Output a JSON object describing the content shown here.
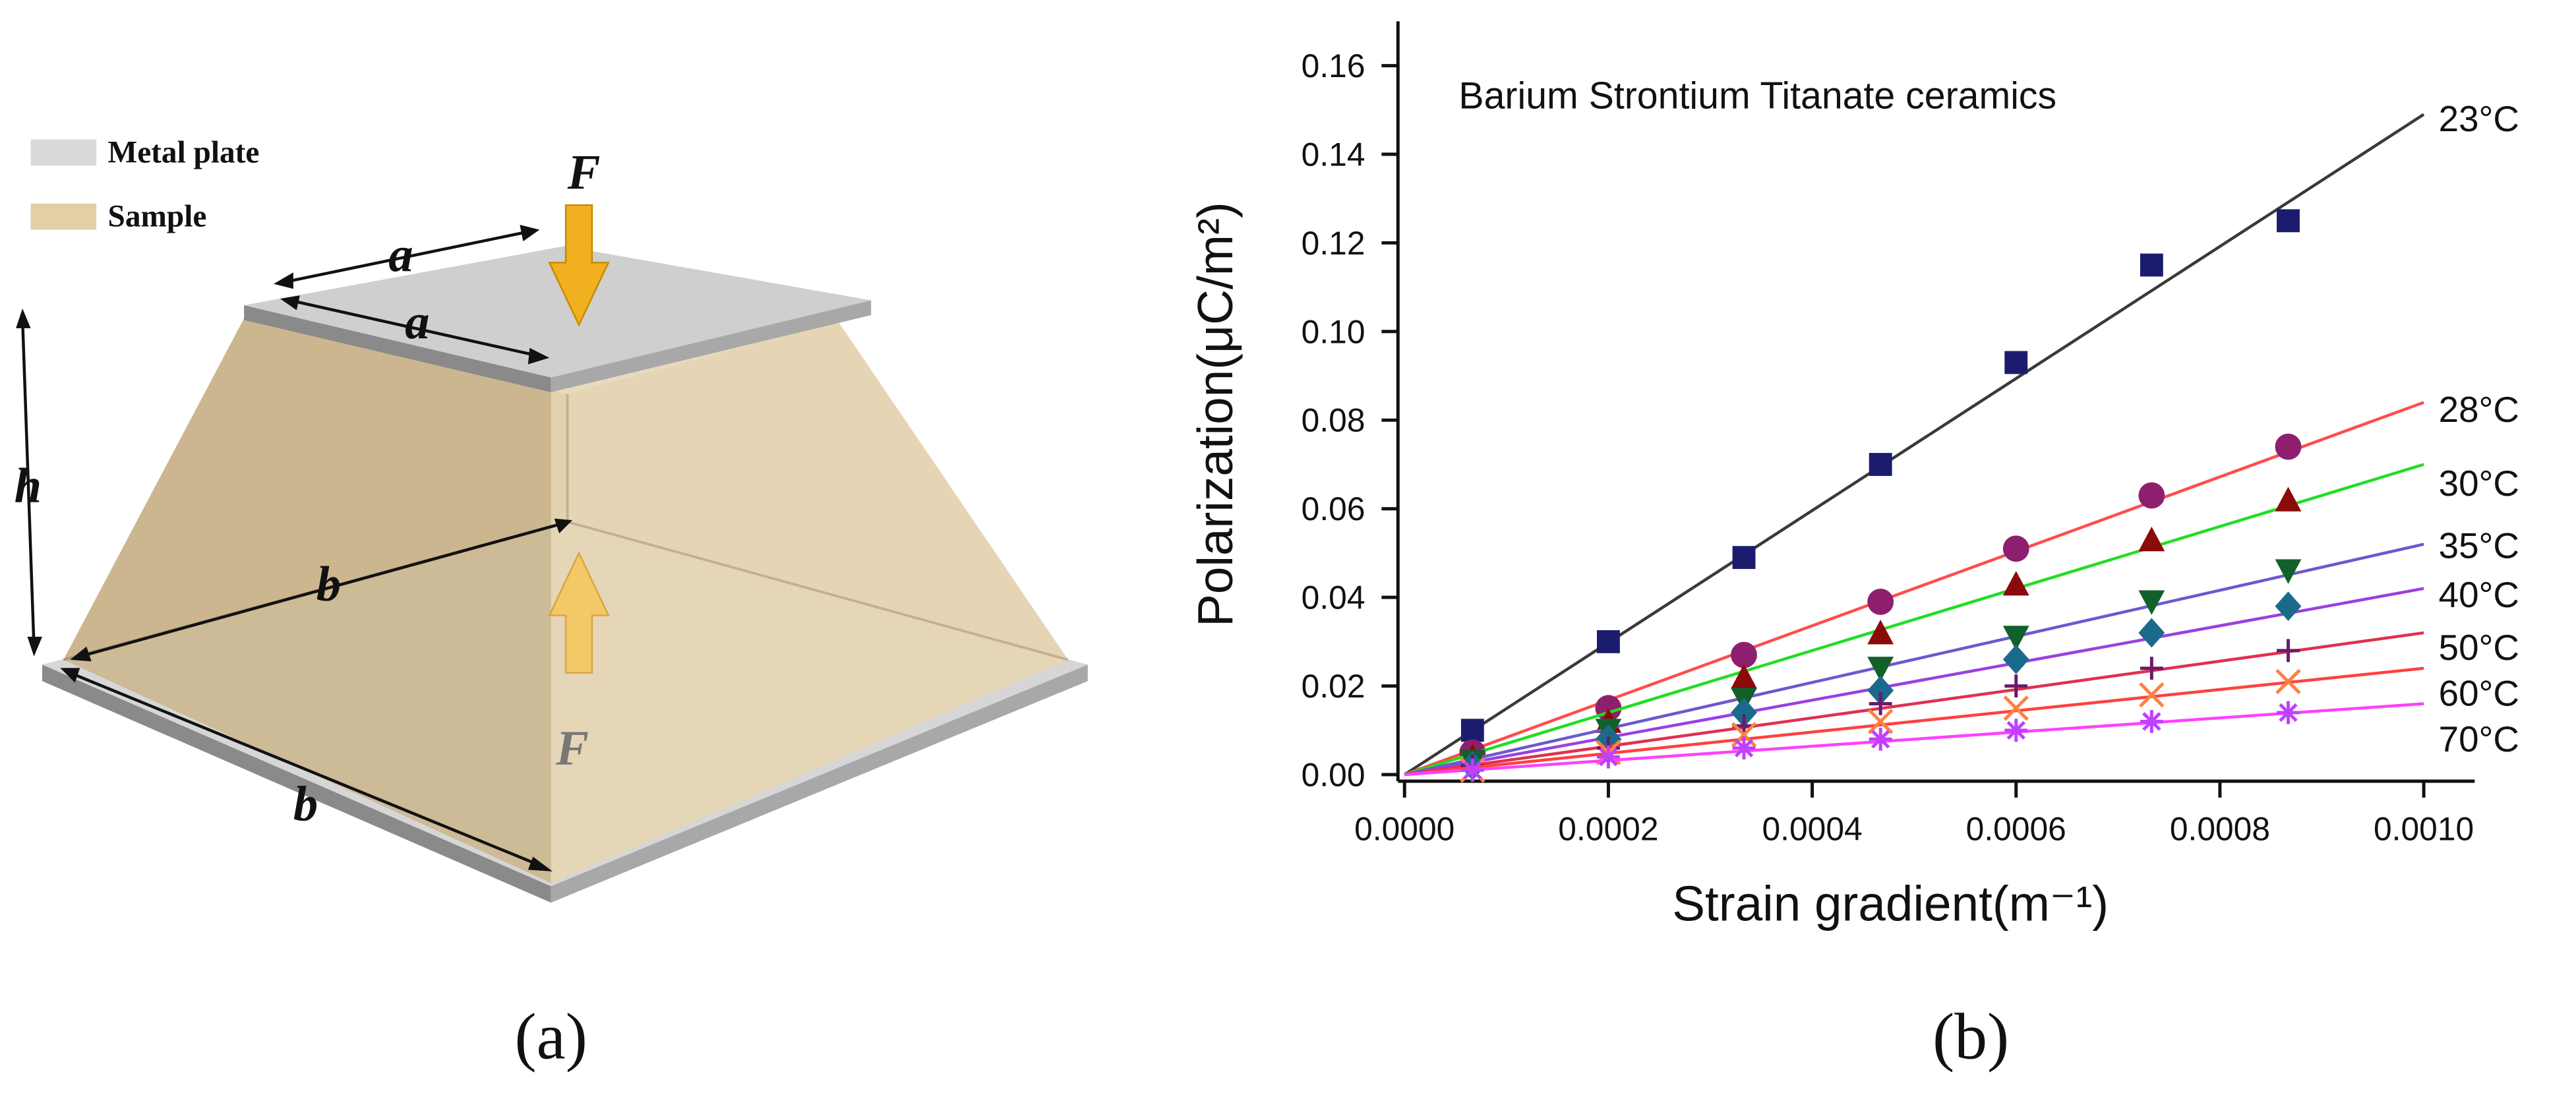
{
  "diagram": {
    "legend": [
      {
        "label": "Metal plate",
        "color": "#d9d9d9"
      },
      {
        "label": "Sample",
        "color": "#e2cfa6"
      }
    ],
    "labels": {
      "force_top": "F",
      "a_top": "a",
      "a_side": "a",
      "h": "h",
      "b_back": "b",
      "b_front": "b",
      "force_bottom": "F"
    },
    "panel_label": "(a)"
  },
  "chart_data": {
    "type": "scatter",
    "panel_label": "(b)",
    "annotation": "Barium Strontium Titanate ceramics",
    "x_label": "Strain gradient(m⁻¹)",
    "y_label": "Polarization(μC/m²)",
    "x": [
      6.67e-05,
      0.0002,
      0.000333,
      0.000467,
      0.0006,
      0.000733,
      0.000867
    ],
    "xlim": [
      0,
      0.00105
    ],
    "ylim": [
      0,
      0.17
    ],
    "xticks": [
      {
        "value": 0,
        "label": "0.0000"
      },
      {
        "value": 0.0002,
        "label": "0.0002"
      },
      {
        "value": 0.0004,
        "label": "0.0004"
      },
      {
        "value": 0.0006,
        "label": "0.0006"
      },
      {
        "value": 0.0008,
        "label": "0.0008"
      },
      {
        "value": 0.001,
        "label": "0.0010"
      }
    ],
    "yticks": [
      {
        "value": 0,
        "label": "0.00"
      },
      {
        "value": 0.02,
        "label": "0.02"
      },
      {
        "value": 0.04,
        "label": "0.04"
      },
      {
        "value": 0.06,
        "label": "0.06"
      },
      {
        "value": 0.08,
        "label": "0.08"
      },
      {
        "value": 0.1,
        "label": "0.10"
      },
      {
        "value": 0.12,
        "label": "0.12"
      },
      {
        "value": 0.14,
        "label": "0.14"
      },
      {
        "value": 0.16,
        "label": "0.16"
      }
    ],
    "series": [
      {
        "name": "23°C",
        "marker": "square",
        "color": "#1c1c6e",
        "line_color": "#3a3a3a",
        "fit_end": 0.149,
        "values": [
          0.01,
          0.03,
          0.049,
          0.07,
          0.093,
          0.115,
          0.125
        ]
      },
      {
        "name": "28°C",
        "marker": "circle",
        "color": "#8e1f6e",
        "line_color": "#ff4d4d",
        "fit_end": 0.084,
        "values": [
          0.005,
          0.015,
          0.027,
          0.039,
          0.051,
          0.063,
          0.074
        ]
      },
      {
        "name": "30°C",
        "marker": "triangle",
        "color": "#8b0a0a",
        "line_color": "#22dd22",
        "fit_end": 0.07,
        "values": [
          0.004,
          0.012,
          0.022,
          0.032,
          0.043,
          0.053,
          0.062
        ]
      },
      {
        "name": "35°C",
        "marker": "triangle-down",
        "color": "#12602a",
        "line_color": "#6a5acd",
        "fit_end": 0.052,
        "values": [
          0.003,
          0.01,
          0.017,
          0.024,
          0.031,
          0.039,
          0.046
        ]
      },
      {
        "name": "40°C",
        "marker": "diamond",
        "color": "#1a6b8b",
        "line_color": "#9a40e0",
        "fit_end": 0.042,
        "values": [
          0.002,
          0.008,
          0.014,
          0.019,
          0.026,
          0.032,
          0.038
        ]
      },
      {
        "name": "50°C",
        "marker": "plus",
        "color": "#6b1a6b",
        "line_color": "#e03050",
        "fit_end": 0.032,
        "values": [
          0.002,
          0.006,
          0.011,
          0.016,
          0.02,
          0.024,
          0.028
        ]
      },
      {
        "name": "60°C",
        "marker": "cross",
        "color": "#ff8040",
        "line_color": "#ff4040",
        "fit_end": 0.024,
        "values": [
          0.001,
          0.005,
          0.009,
          0.012,
          0.015,
          0.018,
          0.021
        ]
      },
      {
        "name": "70°C",
        "marker": "asterisk",
        "color": "#c040ff",
        "line_color": "#ff40ff",
        "fit_end": 0.016,
        "values": [
          0.001,
          0.004,
          0.006,
          0.008,
          0.01,
          0.012,
          0.014
        ]
      }
    ]
  }
}
